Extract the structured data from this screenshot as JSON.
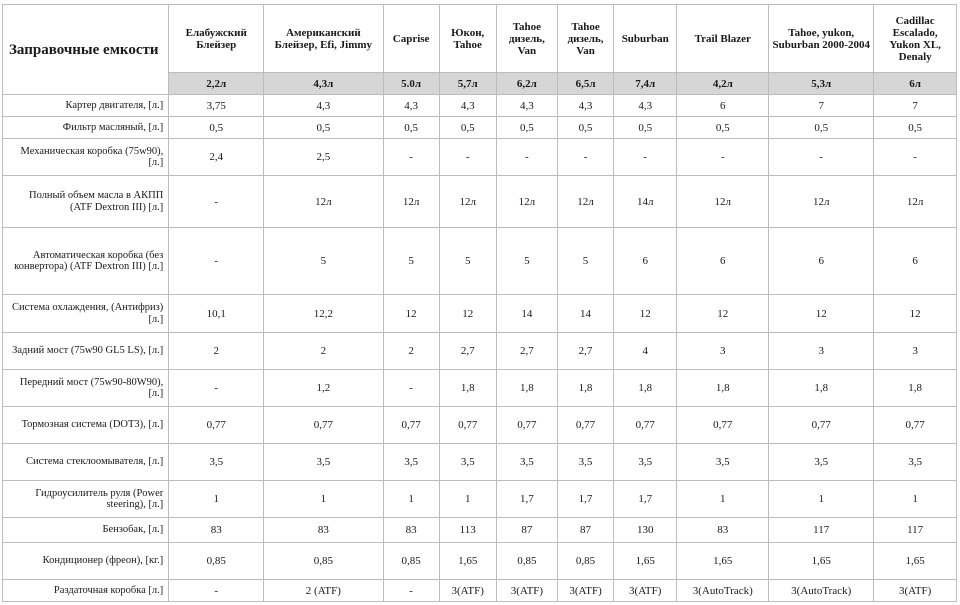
{
  "table": {
    "corner": "Заправочные емкости",
    "columns": [
      "Елабужский Блейзер",
      "Американский Блейзер, Efi, Jimmy",
      "Caprise",
      "Юкон, Tahoe",
      "Tahoe дизель, Van",
      "Tahoe дизель, Van",
      "Suburban",
      "Trail Blazer",
      "Tahoe, yukon, Suburban 2000-2004",
      "Cadillac Escalado, Yukon XL, Denaly"
    ],
    "engine_volumes": [
      "2,2л",
      "4,3л",
      "5.0л",
      "5,7л",
      "6,2л",
      "6,5л",
      "7,4л",
      "4,2л",
      "5,3л",
      "6л"
    ],
    "rows": [
      {
        "label": "Картер двигателя, [л.]",
        "values": [
          "3,75",
          "4,3",
          "4,3",
          "4,3",
          "4,3",
          "4,3",
          "4,3",
          "6",
          "7",
          "7"
        ]
      },
      {
        "label": "Фильтр масляный, [л.]",
        "values": [
          "0,5",
          "0,5",
          "0,5",
          "0,5",
          "0,5",
          "0,5",
          "0,5",
          "0,5",
          "0,5",
          "0,5"
        ]
      },
      {
        "label": "Механическая коробка (75w90), [л.]",
        "values": [
          "2,4",
          "2,5",
          "-",
          "-",
          "-",
          "-",
          "-",
          "-",
          "-",
          "-"
        ]
      },
      {
        "label": "Полный объем масла в АКПП (ATF Dextron III) [л.]",
        "values": [
          "-",
          "12л",
          "12л",
          "12л",
          "12л",
          "12л",
          "14л",
          "12л",
          "12л",
          "12л"
        ]
      },
      {
        "label": "Автоматическая коробка (без конвертора) (ATF Dextron III) [л.]",
        "values": [
          "-",
          "5",
          "5",
          "5",
          "5",
          "5",
          "6",
          "6",
          "6",
          "6"
        ]
      },
      {
        "label": "Система охлаждения, (Антифриз)[л.]",
        "values": [
          "10,1",
          "12,2",
          "12",
          "12",
          "14",
          "14",
          "12",
          "12",
          "12",
          "12"
        ]
      },
      {
        "label": "Задний мост (75w90 GL5 LS), [л.]",
        "values": [
          "2",
          "2",
          "2",
          "2,7",
          "2,7",
          "2,7",
          "4",
          "3",
          "3",
          "3"
        ]
      },
      {
        "label": "Передний мост (75w90-80W90), [л.]",
        "values": [
          "-",
          "1,2",
          "-",
          "1,8",
          "1,8",
          "1,8",
          "1,8",
          "1,8",
          "1,8",
          "1,8"
        ]
      },
      {
        "label": "Тормозная система (DOT3), [л.]",
        "values": [
          "0,77",
          "0,77",
          "0,77",
          "0,77",
          "0,77",
          "0,77",
          "0,77",
          "0,77",
          "0,77",
          "0,77"
        ]
      },
      {
        "label": "Система стеклоомывателя, [л.]",
        "values": [
          "3,5",
          "3,5",
          "3,5",
          "3,5",
          "3,5",
          "3,5",
          "3,5",
          "3,5",
          "3,5",
          "3,5"
        ]
      },
      {
        "label": "Гидроусилитель руля (Power steering), [л.]",
        "values": [
          "1",
          "1",
          "1",
          "1",
          "1,7",
          "1,7",
          "1,7",
          "1",
          "1",
          "1"
        ]
      },
      {
        "label": "Бензобак, [л.]",
        "values": [
          "83",
          "83",
          "83",
          "113",
          "87",
          "87",
          "130",
          "83",
          "117",
          "117"
        ]
      },
      {
        "label": "Кондиционер (фреон), [кг.]",
        "values": [
          "0,85",
          "0,85",
          "0,85",
          "1,65",
          "0,85",
          "0,85",
          "1,65",
          "1,65",
          "1,65",
          "1,65"
        ]
      },
      {
        "label": "Раздаточная коробка [л.]",
        "values": [
          "-",
          "2 (ATF)",
          "-",
          "3(ATF)",
          "3(ATF)",
          "3(ATF)",
          "3(ATF)",
          "3(AutoTrack)",
          "3(AutoTrack)",
          "3(ATF)"
        ]
      }
    ]
  }
}
